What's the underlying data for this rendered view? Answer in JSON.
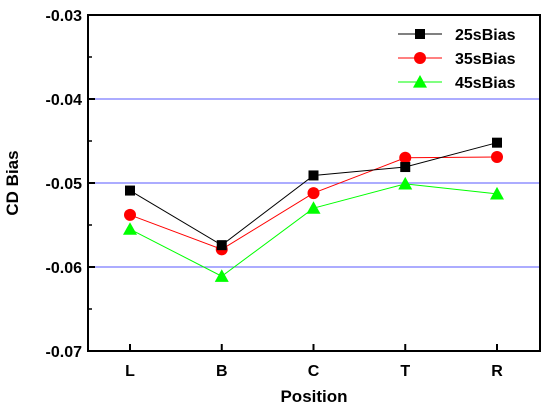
{
  "chart_data": {
    "type": "line",
    "title": "",
    "xlabel": "Position",
    "ylabel": "CD Bias",
    "categories": [
      "L",
      "B",
      "C",
      "T",
      "R"
    ],
    "ylim": [
      -0.07,
      -0.03
    ],
    "yticks": [
      "-0.03",
      "-0.04",
      "-0.05",
      "-0.06",
      "-0.07"
    ],
    "ytick_values": [
      -0.03,
      -0.04,
      -0.05,
      -0.06,
      -0.07
    ],
    "gridlines_y": [
      -0.04,
      -0.05,
      -0.06
    ],
    "grid_color": "#7b7bff",
    "legend_position": "top-right",
    "series": [
      {
        "name": "25sBias",
        "values": [
          -0.0509,
          -0.0574,
          -0.0491,
          -0.0481,
          -0.0452
        ],
        "color": "#000000",
        "marker": "square"
      },
      {
        "name": "35sBias",
        "values": [
          -0.0538,
          -0.0579,
          -0.0512,
          -0.047,
          -0.0469
        ],
        "color": "#ff0000",
        "marker": "circle"
      },
      {
        "name": "45sBias",
        "values": [
          -0.0555,
          -0.0611,
          -0.053,
          -0.0501,
          -0.0513
        ],
        "color": "#00ff00",
        "marker": "triangle"
      }
    ]
  }
}
